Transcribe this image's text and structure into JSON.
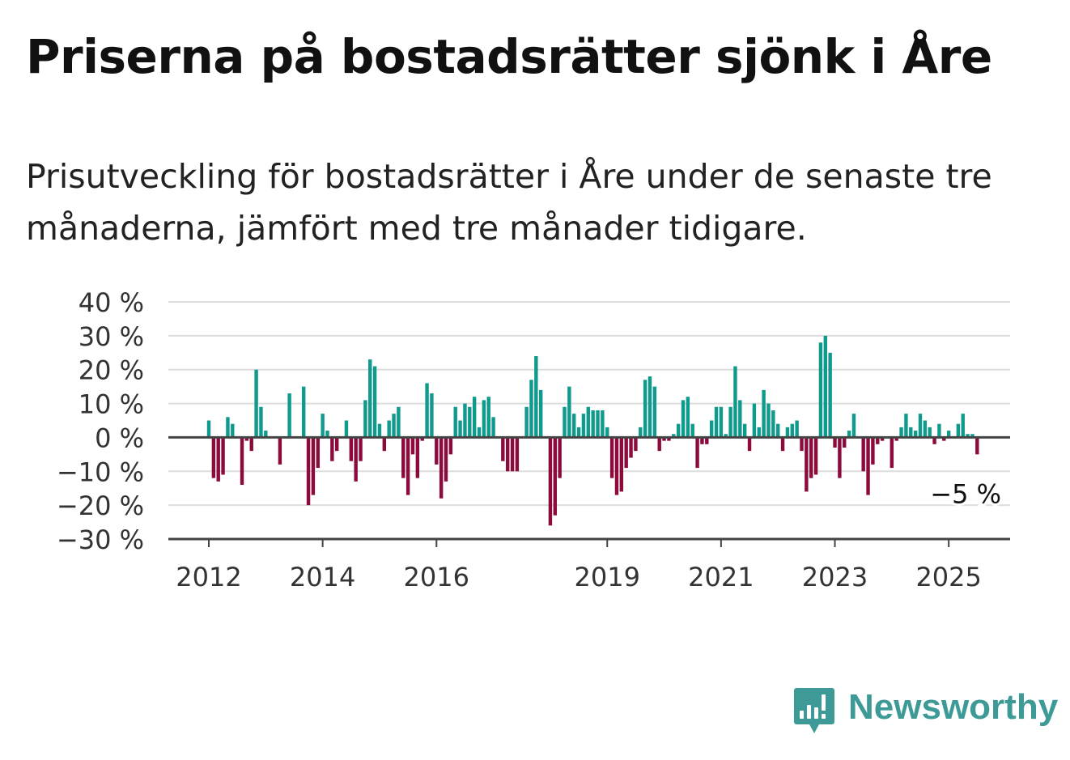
{
  "title": "Priserna på bostadsrätter sjönk i Åre",
  "subtitle": "Prisutveckling för bostadsrätter i Åre under de senaste tre månaderna, jämfört med tre månader tidigare.",
  "brand": {
    "name": "Newsworthy",
    "icon": "newsworthy-logo-icon",
    "color": "#3d9a96"
  },
  "colors": {
    "positive": "#0f9a8e",
    "negative": "#8c0a3c",
    "grid": "#dddddd",
    "axis": "#444444"
  },
  "chart_data": {
    "type": "bar",
    "title": "",
    "xlabel": "",
    "ylabel": "",
    "ylim": [
      -30,
      40
    ],
    "y_ticks": [
      40,
      30,
      20,
      10,
      0,
      -10,
      -20,
      -30
    ],
    "y_tick_labels": [
      "40 %",
      "30 %",
      "20 %",
      "10 %",
      "0 %",
      "−10 %",
      "−20 %",
      "−30 %"
    ],
    "x_ticks": [
      {
        "label": "2012",
        "index": 0
      },
      {
        "label": "2014",
        "index": 24
      },
      {
        "label": "2016",
        "index": 48
      },
      {
        "label": "2019",
        "index": 84
      },
      {
        "label": "2021",
        "index": 108
      },
      {
        "label": "2023",
        "index": 132
      },
      {
        "label": "2025",
        "index": 156
      }
    ],
    "x_start": "2012-01",
    "frequency": "monthly",
    "grid": true,
    "annotation": {
      "label": "−5 %",
      "index": 160,
      "value": -5
    },
    "values": [
      5,
      -12,
      -13,
      -11,
      6,
      4,
      0,
      -14,
      -1,
      -4,
      20,
      9,
      2,
      0,
      0,
      -8,
      0,
      13,
      0,
      0,
      15,
      -20,
      -17,
      -9,
      7,
      2,
      -7,
      -4,
      0,
      5,
      -7,
      -13,
      -7,
      11,
      23,
      21,
      4,
      -4,
      5,
      7,
      9,
      -12,
      -17,
      -5,
      -12,
      -1,
      16,
      13,
      -8,
      -18,
      -13,
      -5,
      9,
      5,
      10,
      9,
      12,
      3,
      11,
      12,
      6,
      0,
      -7,
      -10,
      -10,
      -10,
      0,
      9,
      17,
      24,
      14,
      0,
      -26,
      -23,
      -12,
      9,
      15,
      7,
      3,
      7,
      9,
      8,
      8,
      8,
      3,
      -12,
      -17,
      -16,
      -9,
      -6,
      -4,
      3,
      17,
      18,
      15,
      -4,
      -1,
      -1,
      1,
      4,
      11,
      12,
      4,
      -9,
      -2,
      -2,
      5,
      9,
      9,
      1,
      9,
      21,
      11,
      4,
      -4,
      10,
      3,
      14,
      10,
      8,
      4,
      -4,
      3,
      4,
      5,
      -4,
      -16,
      -12,
      -11,
      28,
      30,
      25,
      -3,
      -12,
      -3,
      2,
      7,
      0,
      -10,
      -17,
      -8,
      -2,
      -1,
      0,
      -9,
      -1,
      3,
      7,
      3,
      2,
      7,
      5,
      3,
      -2,
      4,
      -1,
      2,
      0,
      4,
      7,
      1,
      1,
      -5
    ]
  }
}
